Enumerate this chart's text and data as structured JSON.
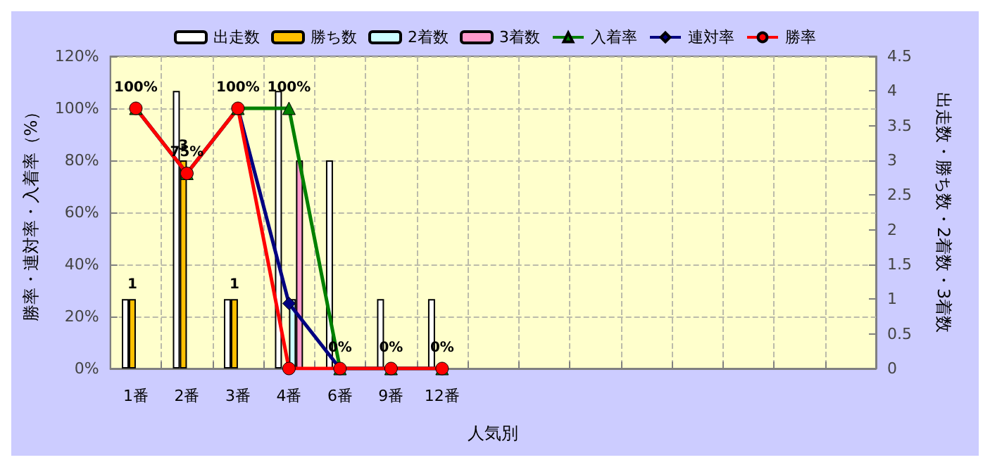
{
  "chart_data": {
    "type": "bar",
    "xlabel": "人気別",
    "ylabel": "勝率・連対率・入着率（%）",
    "y2label": "出走数・勝ち数・2着数・3着数",
    "categories": [
      "1番",
      "2番",
      "3番",
      "4番",
      "6番",
      "9番",
      "12番",
      null,
      null,
      null,
      null,
      null,
      null,
      null,
      null
    ],
    "series": [
      {
        "name": "出走数",
        "axis": "y2",
        "color": "#ffffff",
        "values": [
          1,
          4,
          1,
          4,
          3,
          1,
          1,
          null,
          null,
          null,
          null,
          null,
          null,
          null,
          null
        ]
      },
      {
        "name": "勝ち数",
        "axis": "y2",
        "color": "#ffc000",
        "values": [
          1,
          3,
          1,
          null,
          null,
          null,
          null,
          null,
          null,
          null,
          null,
          null,
          null,
          null,
          null
        ],
        "value_labels": [
          "1",
          "3",
          "1",
          null,
          null,
          null,
          null,
          null,
          null,
          null,
          null,
          null,
          null,
          null,
          null
        ]
      },
      {
        "name": "2着数",
        "axis": "y2",
        "color": "#ccffff",
        "values": [
          null,
          null,
          null,
          1,
          null,
          null,
          null,
          null,
          null,
          null,
          null,
          null,
          null,
          null,
          null
        ]
      },
      {
        "name": "3着数",
        "axis": "y2",
        "color": "#ff99cc",
        "values": [
          null,
          null,
          null,
          3,
          null,
          null,
          null,
          null,
          null,
          null,
          null,
          null,
          null,
          null,
          null
        ]
      },
      {
        "name": "入着率",
        "type": "line",
        "marker": "triangle",
        "color": "#008000",
        "values": [
          100,
          75,
          100,
          100,
          0,
          0,
          0,
          null,
          null,
          null,
          null,
          null,
          null,
          null,
          null
        ],
        "value_labels": [
          "100%",
          "75%",
          "100%",
          "100%",
          "0%",
          "0%",
          "0%",
          null,
          null,
          null,
          null,
          null,
          null,
          null,
          null
        ]
      },
      {
        "name": "連対率",
        "type": "line",
        "marker": "diamond",
        "color": "#000080",
        "values": [
          100,
          75,
          100,
          25,
          0,
          0,
          0,
          null,
          null,
          null,
          null,
          null,
          null,
          null,
          null
        ]
      },
      {
        "name": "勝率",
        "type": "line",
        "marker": "circle",
        "color": "#ff0000",
        "values": [
          100,
          75,
          100,
          0,
          0,
          0,
          0,
          null,
          null,
          null,
          null,
          null,
          null,
          null,
          null
        ]
      }
    ],
    "ylim": [
      0,
      120
    ],
    "yticks": [
      {
        "value": 0,
        "label": "0%"
      },
      {
        "value": 20,
        "label": "20%"
      },
      {
        "value": 40,
        "label": "40%"
      },
      {
        "value": 60,
        "label": "60%"
      },
      {
        "value": 80,
        "label": "80%"
      },
      {
        "value": 100,
        "label": "100%"
      },
      {
        "value": 120,
        "label": "120%"
      }
    ],
    "y2lim": [
      0,
      4.5
    ],
    "y2ticks": [
      0,
      0.5,
      1,
      1.5,
      2,
      2.5,
      3,
      3.5,
      4,
      4.5
    ],
    "grid": true,
    "legend": "top"
  }
}
